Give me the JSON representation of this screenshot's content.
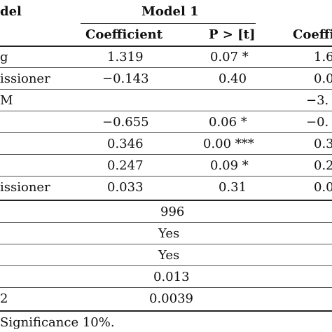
{
  "header": {
    "model_col": "del",
    "model1": "Model 1",
    "coefficient": "Coefficient",
    "p_value": "P > [t]",
    "coeff_cut": "Coeffi"
  },
  "rows": [
    {
      "label": "g",
      "coef": "1.319",
      "p": "0.07 *",
      "next": "1.6"
    },
    {
      "label": "issioner",
      "coef": "−0.143",
      "p": "0.40",
      "next": "0.0"
    },
    {
      "label": "M",
      "coef": "",
      "p": "",
      "next": "−3."
    },
    {
      "label": "",
      "coef": "−0.655",
      "p": "0.06 *",
      "next": "−0."
    },
    {
      "label": "",
      "coef": "0.346",
      "p": "0.00 ***",
      "next": "0.3"
    },
    {
      "label": "",
      "coef": "0.247",
      "p": "0.09 *",
      "next": "0.2"
    },
    {
      "label": "issioner",
      "coef": "0.033",
      "p": "0.31",
      "next": "0.0"
    }
  ],
  "summary": [
    {
      "label": "",
      "value": "996"
    },
    {
      "label": "",
      "value": "Yes"
    },
    {
      "label": "",
      "value": "Yes"
    },
    {
      "label": "",
      "value": "0.013"
    },
    {
      "label": "2",
      "value": "0.0039"
    }
  ],
  "footnote": "Significance 10%."
}
